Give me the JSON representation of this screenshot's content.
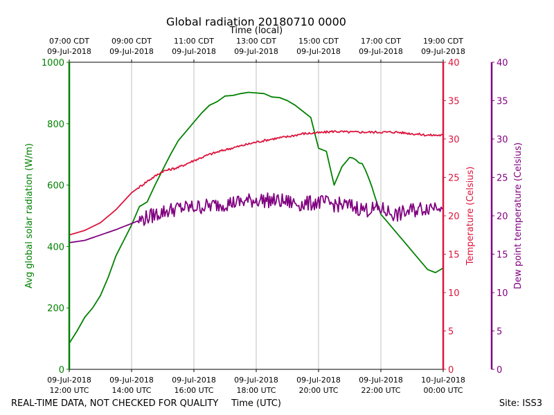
{
  "chart_data": {
    "type": "line",
    "title": "Global radiation 20180710 0000",
    "top_axis": {
      "label": "Time (local)",
      "ticks": [
        [
          "07:00 CDT",
          "09-Jul-2018"
        ],
        [
          "09:00 CDT",
          "09-Jul-2018"
        ],
        [
          "11:00 CDT",
          "09-Jul-2018"
        ],
        [
          "13:00 CDT",
          "09-Jul-2018"
        ],
        [
          "15:00 CDT",
          "09-Jul-2018"
        ],
        [
          "17:00 CDT",
          "09-Jul-2018"
        ],
        [
          "19:00 CDT",
          "09-Jul-2018"
        ]
      ]
    },
    "xlabel": "Time (UTC)",
    "xlim": [
      0,
      12
    ],
    "x_ticks": [
      {
        "x": 0,
        "lines": [
          "09-Jul-2018",
          "12:00 UTC"
        ]
      },
      {
        "x": 2,
        "lines": [
          "09-Jul-2018",
          "14:00 UTC"
        ]
      },
      {
        "x": 4,
        "lines": [
          "09-Jul-2018",
          "16:00 UTC"
        ]
      },
      {
        "x": 6,
        "lines": [
          "09-Jul-2018",
          "18:00 UTC"
        ]
      },
      {
        "x": 8,
        "lines": [
          "09-Jul-2018",
          "20:00 UTC"
        ]
      },
      {
        "x": 10,
        "lines": [
          "09-Jul-2018",
          "22:00 UTC"
        ]
      },
      {
        "x": 12,
        "lines": [
          "10-Jul-2018",
          "00:00 UTC"
        ]
      }
    ],
    "x_unit": "hours since 09-Jul-2018 12:00 UTC",
    "grid": "vertical",
    "axes": {
      "radiation": {
        "label": "Avg global solar radiation (W/m)",
        "ylim": [
          0,
          1000
        ],
        "ticks": [
          "0",
          "200",
          "400",
          "600",
          "800",
          "1000"
        ],
        "color": "#008000"
      },
      "temperature": {
        "label": "Temperature (Celsius)",
        "ylim": [
          0,
          40
        ],
        "ticks": [
          "0",
          "5",
          "10",
          "15",
          "20",
          "25",
          "30",
          "35",
          "40"
        ],
        "color": "#dc143c"
      },
      "dewpoint": {
        "label": "Dew point temperature (Celsius)",
        "ylim": [
          0,
          40
        ],
        "ticks": [
          "0",
          "5",
          "10",
          "15",
          "20",
          "25",
          "30",
          "35",
          "40"
        ],
        "color": "#800080"
      }
    },
    "series": [
      {
        "name": "Avg global solar radiation",
        "axis": "radiation",
        "color": "#008000",
        "x": [
          0,
          0.25,
          0.5,
          0.75,
          1,
          1.25,
          1.5,
          1.75,
          2,
          2.25,
          2.5,
          2.75,
          3,
          3.25,
          3.5,
          3.75,
          4,
          4.25,
          4.5,
          4.75,
          5,
          5.25,
          5.5,
          5.75,
          6,
          6.25,
          6.5,
          6.75,
          7,
          7.25,
          7.5,
          7.75,
          8,
          8.25,
          8.5,
          8.75,
          9,
          9.1,
          9.2,
          9.3,
          9.4,
          9.5,
          9.6,
          9.7,
          9.8,
          9.9,
          10,
          10.25,
          10.5,
          10.75,
          11,
          11.25,
          11.5,
          11.75,
          12
        ],
        "y": [
          85,
          125,
          170,
          200,
          240,
          300,
          370,
          420,
          470,
          530,
          545,
          600,
          650,
          700,
          745,
          775,
          805,
          835,
          860,
          872,
          890,
          892,
          898,
          902,
          900,
          898,
          887,
          885,
          875,
          860,
          840,
          820,
          720,
          710,
          600,
          660,
          690,
          688,
          682,
          672,
          670,
          650,
          625,
          598,
          565,
          535,
          505,
          475,
          445,
          415,
          385,
          355,
          325,
          315,
          330
        ]
      },
      {
        "name": "Temperature",
        "axis": "temperature",
        "color": "#dc143c",
        "x": [
          0,
          0.5,
          1,
          1.5,
          2,
          2.5,
          3,
          3.5,
          4,
          4.5,
          5,
          5.5,
          6,
          6.5,
          7,
          7.5,
          8,
          8.5,
          9,
          9.5,
          10,
          10.5,
          11,
          11.5,
          12
        ],
        "y": [
          17.5,
          18.1,
          19.1,
          20.8,
          23,
          24.5,
          25.8,
          26.3,
          27.2,
          28,
          28.6,
          29.1,
          29.6,
          30,
          30.3,
          30.7,
          30.8,
          31,
          30.9,
          30.9,
          30.9,
          30.9,
          30.7,
          30.5,
          30.5
        ]
      },
      {
        "name": "Dew point temperature",
        "axis": "dewpoint",
        "color": "#800080",
        "x": [
          0,
          0.5,
          1,
          1.5,
          2,
          2.5,
          3,
          3.5,
          4,
          4.5,
          5,
          5.5,
          6,
          6.5,
          7,
          7.5,
          8,
          8.5,
          9,
          9.5,
          10,
          10.5,
          11,
          11.5,
          12
        ],
        "y": [
          16.5,
          16.8,
          17.5,
          18.2,
          19,
          19.8,
          20.5,
          21,
          21.1,
          21.3,
          21.6,
          21.8,
          22.1,
          22,
          21.8,
          21.5,
          21.8,
          21.5,
          21.3,
          20.8,
          20.9,
          20.1,
          20.7,
          21.1,
          21.6
        ]
      }
    ]
  },
  "footer": {
    "disclaimer": "REAL-TIME DATA, NOT CHECKED FOR QUALITY",
    "site": "Site: ISS3"
  }
}
